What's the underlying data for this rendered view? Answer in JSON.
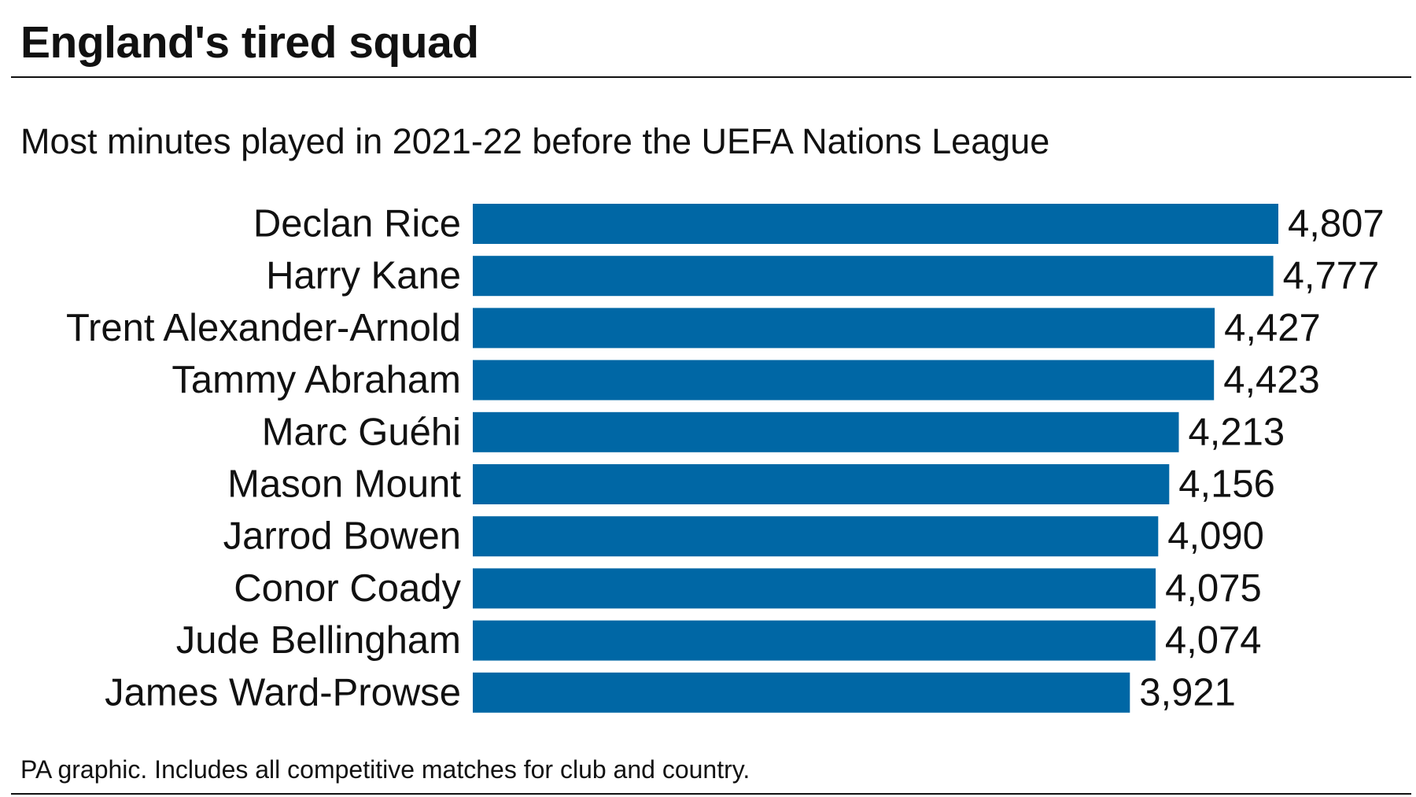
{
  "header": {
    "title": "England's tired squad",
    "subtitle": "Most minutes played in 2021-22 before the UEFA Nations League"
  },
  "footer": {
    "note": "PA graphic.  Includes all competitive matches for club and country."
  },
  "colors": {
    "bar": "#0067a5",
    "text": "#111111",
    "rule": "#111111"
  },
  "chart_data": {
    "type": "bar",
    "orientation": "horizontal",
    "title": "England's tired squad",
    "subtitle": "Most minutes played in 2021-22 before the UEFA Nations League",
    "categories": [
      "Declan Rice",
      "Harry Kane",
      "Trent Alexander-Arnold",
      "Tammy Abraham",
      "Marc Guéhi",
      "Mason Mount",
      "Jarrod Bowen",
      "Conor Coady",
      "Jude Bellingham",
      "James Ward-Prowse"
    ],
    "values": [
      4807,
      4777,
      4427,
      4423,
      4213,
      4156,
      4090,
      4075,
      4074,
      3921
    ],
    "value_labels": [
      "4,807",
      "4,777",
      "4,427",
      "4,423",
      "4,213",
      "4,156",
      "4,090",
      "4,075",
      "4,074",
      "3,921"
    ],
    "xlim": [
      0,
      4807
    ],
    "grid": false,
    "legend": "none",
    "data_labels": "end of bar"
  }
}
